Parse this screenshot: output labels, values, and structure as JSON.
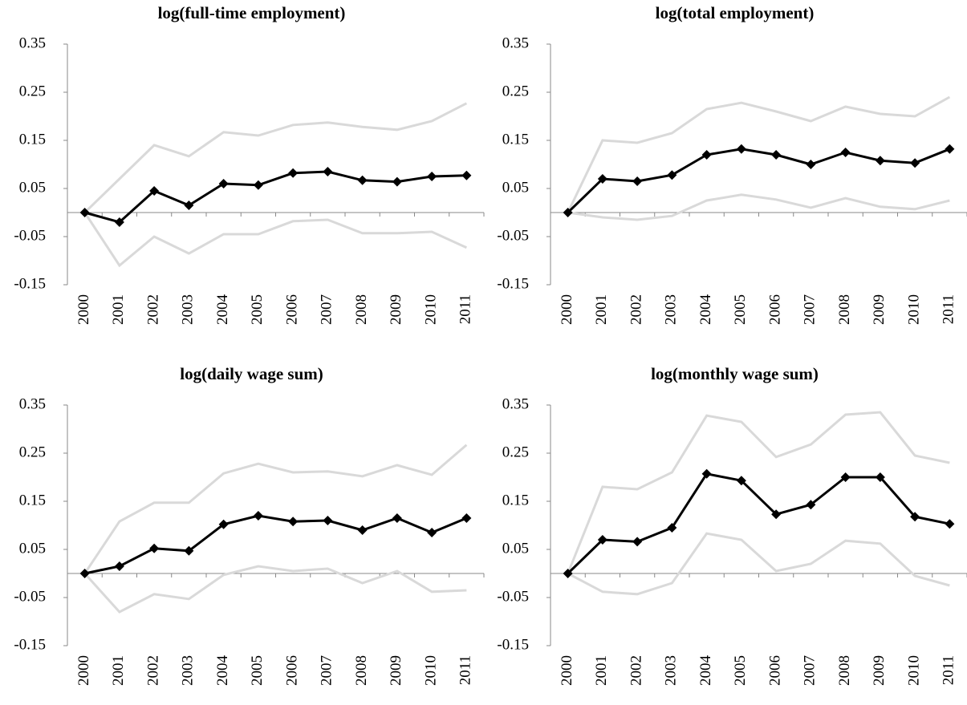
{
  "chart_data": [
    {
      "type": "line",
      "title": "log(full-time employment)",
      "categories": [
        "2000",
        "2001",
        "2002",
        "2003",
        "2004",
        "2005",
        "2006",
        "2007",
        "2008",
        "2009",
        "2010",
        "2011"
      ],
      "series": [
        {
          "color": "#d9d9d9",
          "values": [
            0,
            0.07,
            0.14,
            0.117,
            0.167,
            0.16,
            0.182,
            0.187,
            0.178,
            0.172,
            0.19,
            0.227
          ]
        },
        {
          "color": "#d9d9d9",
          "values": [
            0,
            -0.11,
            -0.05,
            -0.085,
            -0.045,
            -0.045,
            -0.018,
            -0.015,
            -0.043,
            -0.043,
            -0.04,
            -0.073
          ]
        },
        {
          "color": "#000000",
          "marker": "diamond",
          "values": [
            0,
            -0.02,
            0.045,
            0.015,
            0.06,
            0.057,
            0.082,
            0.085,
            0.067,
            0.064,
            0.075,
            0.077
          ]
        }
      ],
      "ylim": [
        -0.15,
        0.35
      ],
      "yticks": [
        0.35,
        0.25,
        0.15,
        0.05,
        -0.05,
        -0.15
      ]
    },
    {
      "type": "line",
      "title": "log(total employment)",
      "categories": [
        "2000",
        "2001",
        "2002",
        "2003",
        "2004",
        "2005",
        "2006",
        "2007",
        "2008",
        "2009",
        "2010",
        "2011"
      ],
      "series": [
        {
          "color": "#d9d9d9",
          "values": [
            0,
            0.15,
            0.145,
            0.165,
            0.215,
            0.228,
            0.21,
            0.19,
            0.22,
            0.205,
            0.2,
            0.24
          ]
        },
        {
          "color": "#d9d9d9",
          "values": [
            0,
            -0.01,
            -0.015,
            -0.007,
            0.025,
            0.037,
            0.027,
            0.01,
            0.03,
            0.012,
            0.007,
            0.025
          ]
        },
        {
          "color": "#000000",
          "marker": "diamond",
          "values": [
            0,
            0.07,
            0.065,
            0.078,
            0.12,
            0.132,
            0.12,
            0.1,
            0.125,
            0.108,
            0.103,
            0.132
          ]
        }
      ],
      "ylim": [
        -0.15,
        0.35
      ],
      "yticks": [
        0.35,
        0.25,
        0.15,
        0.05,
        -0.05,
        -0.15
      ]
    },
    {
      "type": "line",
      "title": "log(daily wage sum)",
      "categories": [
        "2000",
        "2001",
        "2002",
        "2003",
        "2004",
        "2005",
        "2006",
        "2007",
        "2008",
        "2009",
        "2010",
        "2011"
      ],
      "series": [
        {
          "color": "#d9d9d9",
          "values": [
            0,
            0.108,
            0.147,
            0.147,
            0.208,
            0.228,
            0.21,
            0.212,
            0.202,
            0.225,
            0.205,
            0.267
          ]
        },
        {
          "color": "#d9d9d9",
          "values": [
            0,
            -0.08,
            -0.043,
            -0.053,
            -0.003,
            0.015,
            0.005,
            0.01,
            -0.02,
            0.005,
            -0.038,
            -0.035
          ]
        },
        {
          "color": "#000000",
          "marker": "diamond",
          "values": [
            0,
            0.015,
            0.052,
            0.047,
            0.102,
            0.12,
            0.108,
            0.11,
            0.09,
            0.115,
            0.085,
            0.115
          ]
        }
      ],
      "ylim": [
        -0.15,
        0.35
      ],
      "yticks": [
        0.35,
        0.25,
        0.15,
        0.05,
        -0.05,
        -0.15
      ]
    },
    {
      "type": "line",
      "title": "log(monthly wage sum)",
      "categories": [
        "2000",
        "2001",
        "2002",
        "2003",
        "2004",
        "2005",
        "2006",
        "2007",
        "2008",
        "2009",
        "2010",
        "2011"
      ],
      "series": [
        {
          "color": "#d9d9d9",
          "values": [
            0,
            0.18,
            0.175,
            0.21,
            0.328,
            0.315,
            0.242,
            0.268,
            0.33,
            0.335,
            0.245,
            0.23
          ]
        },
        {
          "color": "#d9d9d9",
          "values": [
            0,
            -0.038,
            -0.043,
            -0.02,
            0.083,
            0.07,
            0.005,
            0.02,
            0.068,
            0.062,
            -0.005,
            -0.025
          ]
        },
        {
          "color": "#000000",
          "marker": "diamond",
          "values": [
            0,
            0.07,
            0.066,
            0.095,
            0.207,
            0.193,
            0.123,
            0.143,
            0.2,
            0.2,
            0.118,
            0.103
          ]
        }
      ],
      "ylim": [
        -0.15,
        0.35
      ],
      "yticks": [
        0.35,
        0.25,
        0.15,
        0.05,
        -0.05,
        -0.15
      ]
    }
  ]
}
